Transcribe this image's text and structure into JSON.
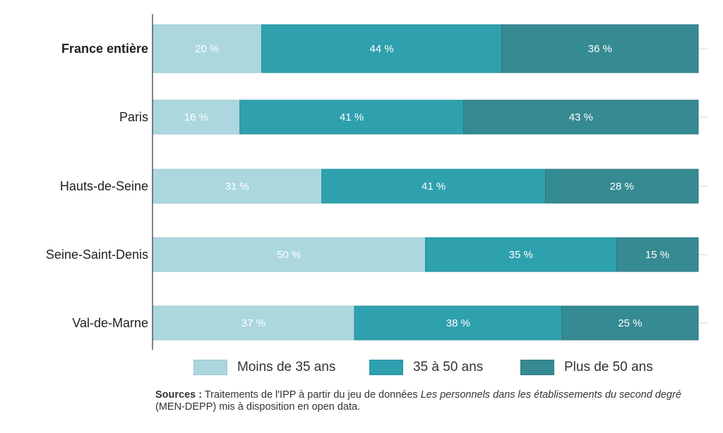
{
  "chart_data": {
    "type": "bar",
    "orientation": "horizontal",
    "stacked": true,
    "categories": [
      "France entière",
      "Paris",
      "Hauts-de-Seine",
      "Seine-Saint-Denis",
      "Val-de-Marne"
    ],
    "series": [
      {
        "name": "Moins de 35 ans",
        "color": "#acd7de",
        "values": [
          20,
          16,
          31,
          50,
          37
        ]
      },
      {
        "name": "35 à 50 ans",
        "color": "#2fa0ae",
        "values": [
          44,
          41,
          41,
          35,
          38
        ]
      },
      {
        "name": "Plus de 50 ans",
        "color": "#368a92",
        "values": [
          36,
          43,
          28,
          15,
          25
        ]
      }
    ],
    "value_suffix": " %",
    "xlim": [
      0,
      100
    ],
    "legend_position": "bottom",
    "grid": false
  },
  "source": {
    "label": "Sources :",
    "text1": " Traitements de l'IPP à partir du jeu de données ",
    "italic1": "Les personnels dans les établissements du second degré",
    "text2": " (MEN-DEPP) mis à disposition en open data."
  }
}
